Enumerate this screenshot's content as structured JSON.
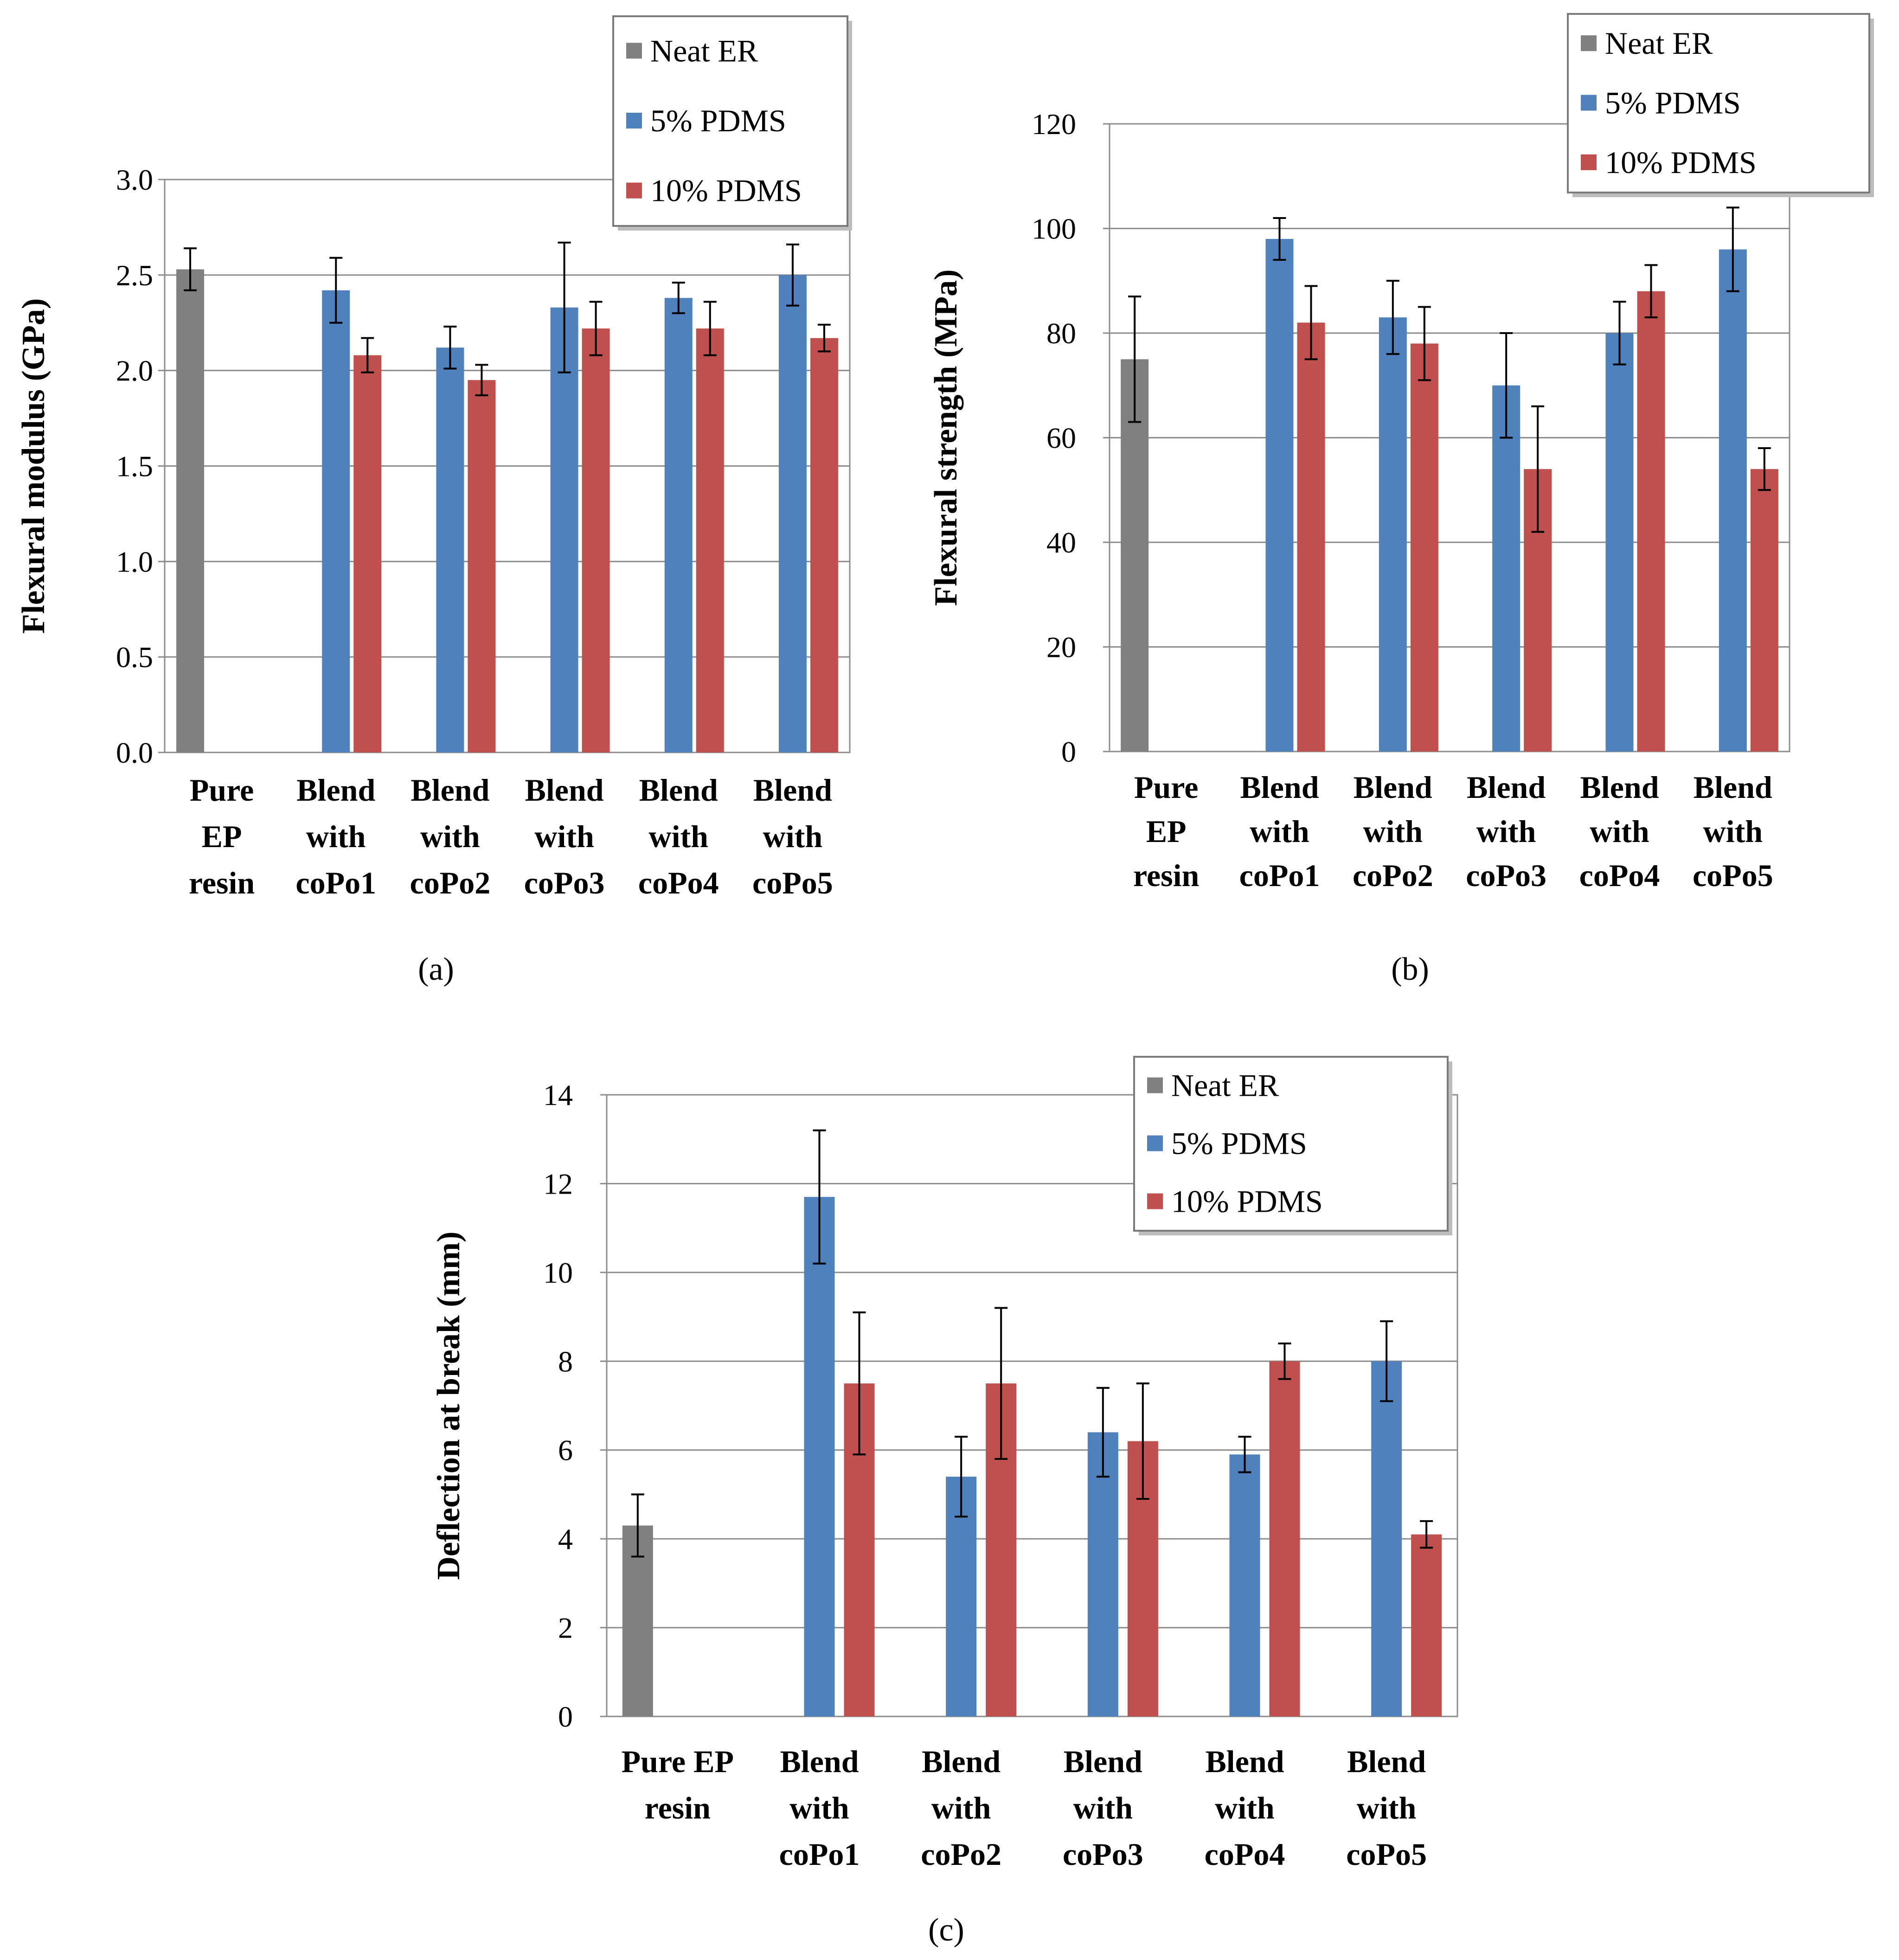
{
  "chart_data": [
    {
      "type": "bar",
      "panel": "a",
      "title": "",
      "caption": "(a)",
      "xlabel": "",
      "ylabel": "Flexural modulus  (GPa)",
      "ylim": [
        0,
        3.0
      ],
      "yticks": [
        "0.0",
        "0.5",
        "1.0",
        "1.5",
        "2.0",
        "2.5",
        "3.0"
      ],
      "ytick_values": [
        0,
        0.5,
        1.0,
        1.5,
        2.0,
        2.5,
        3.0
      ],
      "grid": true,
      "legend_position": "top-right",
      "categories": [
        [
          "Pure",
          "EP",
          "resin"
        ],
        [
          "Blend",
          "with",
          "coPo1"
        ],
        [
          "Blend",
          "with",
          "coPo2"
        ],
        [
          "Blend",
          "with",
          "coPo3"
        ],
        [
          "Blend",
          "with",
          "coPo4"
        ],
        [
          "Blend",
          "with",
          "coPo5"
        ]
      ],
      "series": [
        {
          "name": "Neat ER",
          "color": "#808080",
          "values": [
            2.53,
            null,
            null,
            null,
            null,
            null
          ],
          "errors": [
            0.11,
            null,
            null,
            null,
            null,
            null
          ]
        },
        {
          "name": "5% PDMS",
          "color": "#4f81bd",
          "values": [
            null,
            2.42,
            2.12,
            2.33,
            2.38,
            2.5
          ],
          "errors": [
            null,
            0.17,
            0.11,
            0.34,
            0.08,
            0.16
          ]
        },
        {
          "name": "10% PDMS",
          "color": "#c0504d",
          "values": [
            null,
            2.08,
            1.95,
            2.22,
            2.22,
            2.17
          ],
          "errors": [
            null,
            0.09,
            0.08,
            0.14,
            0.14,
            0.07
          ]
        }
      ]
    },
    {
      "type": "bar",
      "panel": "b",
      "title": "",
      "caption": "(b)",
      "xlabel": "",
      "ylabel": "Flexural strength  (MPa)",
      "ylim": [
        0,
        120
      ],
      "yticks": [
        "0",
        "20",
        "40",
        "60",
        "80",
        "100",
        "120"
      ],
      "ytick_values": [
        0,
        20,
        40,
        60,
        80,
        100,
        120
      ],
      "grid": true,
      "legend_position": "top-right",
      "categories": [
        [
          "Pure",
          "EP",
          "resin"
        ],
        [
          "Blend",
          "with",
          "coPo1"
        ],
        [
          "Blend",
          "with",
          "coPo2"
        ],
        [
          "Blend",
          "with",
          "coPo3"
        ],
        [
          "Blend",
          "with",
          "coPo4"
        ],
        [
          "Blend",
          "with",
          "coPo5"
        ]
      ],
      "series": [
        {
          "name": "Neat ER",
          "color": "#808080",
          "values": [
            75,
            null,
            null,
            null,
            null,
            null
          ],
          "errors": [
            12,
            null,
            null,
            null,
            null,
            null
          ]
        },
        {
          "name": "5% PDMS",
          "color": "#4f81bd",
          "values": [
            null,
            98,
            83,
            70,
            80,
            96
          ],
          "errors": [
            null,
            4,
            7,
            10,
            6,
            8
          ]
        },
        {
          "name": "10% PDMS",
          "color": "#c0504d",
          "values": [
            null,
            82,
            78,
            54,
            88,
            54
          ],
          "errors": [
            null,
            7,
            7,
            12,
            5,
            4
          ]
        }
      ]
    },
    {
      "type": "bar",
      "panel": "c",
      "title": "",
      "caption": "(c)",
      "xlabel": "",
      "ylabel": "Deflection at break (mm)",
      "ylim": [
        0,
        14
      ],
      "yticks": [
        "0",
        "2",
        "4",
        "6",
        "8",
        "10",
        "12",
        "14"
      ],
      "ytick_values": [
        0,
        2,
        4,
        6,
        8,
        10,
        12,
        14
      ],
      "grid": true,
      "legend_position": "top-right",
      "categories": [
        [
          "Pure EP",
          "resin"
        ],
        [
          "Blend",
          "with",
          "coPo1"
        ],
        [
          "Blend",
          "with",
          "coPo2"
        ],
        [
          "Blend",
          "with",
          "coPo3"
        ],
        [
          "Blend",
          "with",
          "coPo4"
        ],
        [
          "Blend",
          "with",
          "coPo5"
        ]
      ],
      "series": [
        {
          "name": "Neat ER",
          "color": "#808080",
          "values": [
            4.3,
            null,
            null,
            null,
            null,
            null
          ],
          "errors": [
            0.7,
            null,
            null,
            null,
            null,
            null
          ]
        },
        {
          "name": "5% PDMS",
          "color": "#4f81bd",
          "values": [
            null,
            11.7,
            5.4,
            6.4,
            5.9,
            8.0
          ],
          "errors": [
            null,
            1.5,
            0.9,
            1.0,
            0.4,
            0.9
          ]
        },
        {
          "name": "10% PDMS",
          "color": "#c0504d",
          "values": [
            null,
            7.5,
            7.5,
            6.2,
            8.0,
            4.1
          ],
          "errors": [
            null,
            1.6,
            1.7,
            1.3,
            0.4,
            0.3
          ]
        }
      ]
    }
  ]
}
